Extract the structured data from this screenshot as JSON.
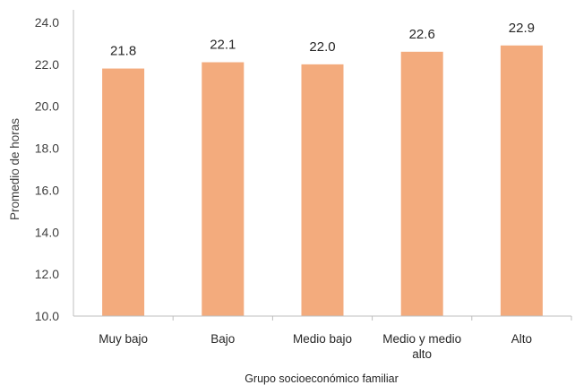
{
  "chart_data": {
    "type": "bar",
    "title": "",
    "xlabel": "Grupo socioeconómico familiar",
    "ylabel": "Promedio de horas",
    "categories": [
      [
        "Muy bajo"
      ],
      [
        "Bajo"
      ],
      [
        "Medio bajo"
      ],
      [
        "Medio y medio",
        "alto"
      ],
      [
        "Alto"
      ]
    ],
    "values": [
      21.8,
      22.1,
      22.0,
      22.6,
      22.9
    ],
    "value_labels": [
      "21.8",
      "22.1",
      "22.0",
      "22.6",
      "22.9"
    ],
    "ylim": [
      10.0,
      24.0
    ],
    "yticks": [
      "10.0",
      "12.0",
      "14.0",
      "16.0",
      "18.0",
      "20.0",
      "22.0",
      "24.0"
    ],
    "grid": false,
    "legend": "none",
    "colors": {
      "bar": "#f3ab7d",
      "axis": "#bfbfbf"
    }
  }
}
